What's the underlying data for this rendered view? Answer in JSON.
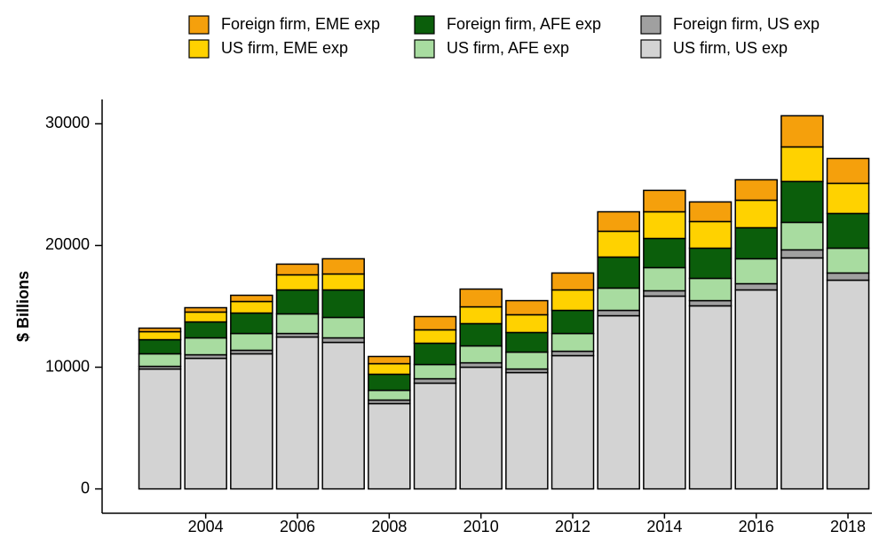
{
  "chart_data": {
    "type": "stacked_bar",
    "y_label": "$ Billions",
    "categories": [
      null,
      "2004",
      null,
      "2006",
      null,
      "2008",
      null,
      "2010",
      null,
      "2012",
      null,
      "2014",
      null,
      "2016",
      null,
      "2018"
    ],
    "series": [
      {
        "name": "US firm, US exp",
        "color": "#d3d3d3",
        "values": [
          9850,
          10730,
          11100,
          12480,
          12040,
          7010,
          8690,
          10000,
          9560,
          10950,
          14230,
          15840,
          15040,
          16350,
          18980,
          17150
        ]
      },
      {
        "name": "Foreign firm, US exp",
        "color": "#a0a0a0",
        "values": [
          220,
          290,
          290,
          290,
          370,
          290,
          360,
          360,
          290,
          360,
          440,
          440,
          430,
          510,
          660,
          590
        ]
      },
      {
        "name": "US firm, AFE exp",
        "color": "#a8dca0",
        "values": [
          1030,
          1390,
          1380,
          1610,
          1680,
          800,
          1170,
          1390,
          1390,
          1460,
          1830,
          1900,
          1830,
          2050,
          2260,
          2040
        ]
      },
      {
        "name": "Foreign firm, AFE exp",
        "color": "#0b5e0b",
        "values": [
          1160,
          1310,
          1680,
          1970,
          2260,
          1320,
          1750,
          1830,
          1610,
          1900,
          2550,
          2400,
          2480,
          2550,
          3360,
          2850
        ]
      },
      {
        "name": "US firm, EME exp",
        "color": "#ffd200",
        "values": [
          660,
          810,
          950,
          1240,
          1310,
          870,
          1100,
          1380,
          1460,
          1680,
          2120,
          2190,
          2190,
          2260,
          2840,
          2480
        ]
      },
      {
        "name": "Foreign firm, EME exp",
        "color": "#f5a00c",
        "values": [
          290,
          360,
          510,
          880,
          1250,
          590,
          1090,
          1460,
          1160,
          1390,
          1600,
          1760,
          1610,
          1680,
          2560,
          2040
        ]
      }
    ],
    "ylim": [
      -2000,
      32000
    ],
    "yticks": [
      0,
      10000,
      20000,
      30000
    ],
    "grid": false
  }
}
